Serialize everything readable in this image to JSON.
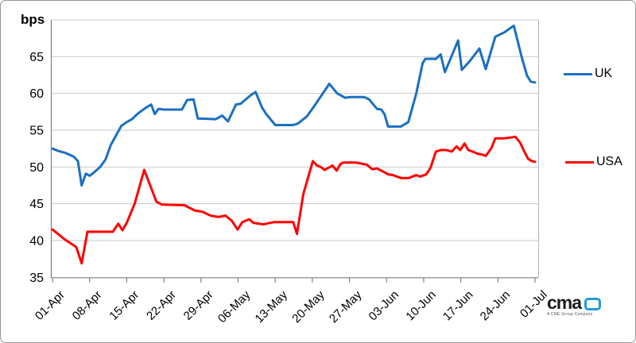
{
  "chart_data": {
    "type": "line",
    "title": "",
    "unit_label": "bps",
    "xlabel": "",
    "ylabel": "bps",
    "ylim": [
      35,
      70
    ],
    "xlim_days": [
      0,
      91
    ],
    "grid": true,
    "legend_position": "right",
    "y_ticks": [
      {
        "value": 65,
        "label": "65"
      },
      {
        "value": 60,
        "label": "60"
      },
      {
        "value": 55,
        "label": "55"
      },
      {
        "value": 50,
        "label": "50"
      },
      {
        "value": 45,
        "label": "45"
      },
      {
        "value": 40,
        "label": "40"
      },
      {
        "value": 35,
        "label": "35"
      }
    ],
    "gridline_values": [
      70,
      65,
      60,
      55,
      50,
      45,
      40
    ],
    "x_tick_labels": [
      "01-Apr",
      "08-Apr",
      "15-Apr",
      "22-Apr",
      "29-Apr",
      "06-May",
      "13-May",
      "20-May",
      "27-May",
      "03-Jun",
      "10-Jun",
      "17-Jun",
      "24-Jun",
      "01-Jul"
    ],
    "x_tick_interval_days": 7,
    "series": [
      {
        "name": "USA",
        "color": "#FE0000",
        "points": [
          [
            0,
            41.5
          ],
          [
            2.4,
            40.1
          ],
          [
            3.9,
            39.4
          ],
          [
            4.5,
            39.1
          ],
          [
            5.5,
            36.9
          ],
          [
            6.6,
            41.2
          ],
          [
            11.4,
            41.2
          ],
          [
            12.4,
            42.3
          ],
          [
            13.2,
            41.4
          ],
          [
            14,
            42.4
          ],
          [
            15.5,
            45.0
          ],
          [
            17.3,
            49.6
          ],
          [
            19.6,
            45.3
          ],
          [
            20.6,
            44.9
          ],
          [
            24.9,
            44.8
          ],
          [
            26.8,
            44.1
          ],
          [
            28.3,
            43.9
          ],
          [
            29.8,
            43.4
          ],
          [
            31.3,
            43.2
          ],
          [
            32.6,
            43.4
          ],
          [
            33.8,
            42.7
          ],
          [
            34.9,
            41.5
          ],
          [
            35.8,
            42.5
          ],
          [
            37.1,
            42.9
          ],
          [
            37.9,
            42.4
          ],
          [
            39.8,
            42.2
          ],
          [
            41,
            42.4
          ],
          [
            41.8,
            42.5
          ],
          [
            45.4,
            42.5
          ],
          [
            46.1,
            40.9
          ],
          [
            47.3,
            46.3
          ],
          [
            49.1,
            50.8
          ],
          [
            49.9,
            50.2
          ],
          [
            50.6,
            50.0
          ],
          [
            51.3,
            49.6
          ],
          [
            52.1,
            49.9
          ],
          [
            52.8,
            50.2
          ],
          [
            53.6,
            49.5
          ],
          [
            54.3,
            50.4
          ],
          [
            54.8,
            50.6
          ],
          [
            57.3,
            50.6
          ],
          [
            59.3,
            50.3
          ],
          [
            60.3,
            49.7
          ],
          [
            61.2,
            49.8
          ],
          [
            62.3,
            49.4
          ],
          [
            63.3,
            49.0
          ],
          [
            64.2,
            48.9
          ],
          [
            65.7,
            48.5
          ],
          [
            67.2,
            48.5
          ],
          [
            68.6,
            48.9
          ],
          [
            69.3,
            48.7
          ],
          [
            70.5,
            49.0
          ],
          [
            71.3,
            49.9
          ],
          [
            72.3,
            52.1
          ],
          [
            73.2,
            52.3
          ],
          [
            74.3,
            52.3
          ],
          [
            75.3,
            52.1
          ],
          [
            76.2,
            52.8
          ],
          [
            76.9,
            52.3
          ],
          [
            77.7,
            53.2
          ],
          [
            78.4,
            52.3
          ],
          [
            79.2,
            52.1
          ],
          [
            80.2,
            51.8
          ],
          [
            81,
            51.7
          ],
          [
            81.7,
            51.5
          ],
          [
            82.8,
            52.6
          ],
          [
            83.5,
            53.9
          ],
          [
            85.2,
            53.9
          ],
          [
            86.2,
            54.0
          ],
          [
            87.3,
            54.1
          ],
          [
            88.2,
            53.3
          ],
          [
            88.9,
            52.2
          ],
          [
            89.7,
            51.1
          ],
          [
            90.4,
            50.8
          ],
          [
            91,
            50.7
          ]
        ]
      },
      {
        "name": "UK",
        "color": "#1B6FC2",
        "points": [
          [
            0,
            52.5
          ],
          [
            1,
            52.2
          ],
          [
            2.5,
            51.9
          ],
          [
            4,
            51.4
          ],
          [
            4.8,
            50.8
          ],
          [
            5.5,
            47.5
          ],
          [
            6.3,
            49.1
          ],
          [
            7,
            48.8
          ],
          [
            7.9,
            49.3
          ],
          [
            9,
            50.0
          ],
          [
            10,
            51.0
          ],
          [
            11,
            53.0
          ],
          [
            12,
            54.3
          ],
          [
            13,
            55.6
          ],
          [
            14,
            56.1
          ],
          [
            15,
            56.5
          ],
          [
            16,
            57.2
          ],
          [
            17.5,
            58.0
          ],
          [
            18.6,
            58.5
          ],
          [
            19.3,
            57.2
          ],
          [
            20,
            57.9
          ],
          [
            21,
            57.8
          ],
          [
            24.4,
            57.8
          ],
          [
            25.4,
            59.1
          ],
          [
            26.6,
            59.2
          ],
          [
            27.4,
            56.6
          ],
          [
            30.8,
            56.5
          ],
          [
            32,
            57.0
          ],
          [
            33.1,
            56.2
          ],
          [
            34.6,
            58.5
          ],
          [
            35.5,
            58.6
          ],
          [
            37.3,
            59.7
          ],
          [
            38.3,
            60.2
          ],
          [
            39.5,
            58.1
          ],
          [
            40.3,
            57.2
          ],
          [
            42,
            55.7
          ],
          [
            45.4,
            55.7
          ],
          [
            46.3,
            55.9
          ],
          [
            48,
            56.9
          ],
          [
            49.3,
            58.2
          ],
          [
            52.2,
            61.3
          ],
          [
            53.7,
            60.0
          ],
          [
            55.2,
            59.4
          ],
          [
            56,
            59.5
          ],
          [
            58.8,
            59.5
          ],
          [
            59.7,
            59.2
          ],
          [
            61.2,
            57.9
          ],
          [
            62,
            57.8
          ],
          [
            62.6,
            57.2
          ],
          [
            63.3,
            55.5
          ],
          [
            65.7,
            55.5
          ],
          [
            67.1,
            56.1
          ],
          [
            68.6,
            60.0
          ],
          [
            69.8,
            64.1
          ],
          [
            70.3,
            64.7
          ],
          [
            72.3,
            64.7
          ],
          [
            73.2,
            65.3
          ],
          [
            74,
            62.9
          ],
          [
            76.5,
            67.2
          ],
          [
            77.2,
            63.2
          ],
          [
            78.7,
            64.4
          ],
          [
            80.5,
            66.1
          ],
          [
            81.7,
            63.3
          ],
          [
            83.5,
            67.7
          ],
          [
            85.2,
            68.3
          ],
          [
            87,
            69.2
          ],
          [
            88.5,
            64.9
          ],
          [
            89.5,
            62.4
          ],
          [
            90.2,
            61.6
          ],
          [
            91,
            61.5
          ]
        ]
      }
    ]
  },
  "legend": {
    "uk_label": "UK",
    "usa_label": "USA"
  },
  "axis": {
    "unit_label": "bps"
  },
  "logo": {
    "brand": "cma",
    "tagline": "A CME Group Company"
  },
  "colors": {
    "uk": "#1B6FC2",
    "usa": "#FE0000",
    "grid": "#C9C9C9",
    "axis": "#7F7F7F",
    "plot_right_border": "#B5B5B5",
    "text": "#000000",
    "logo_accent": "#1E9CD8"
  }
}
